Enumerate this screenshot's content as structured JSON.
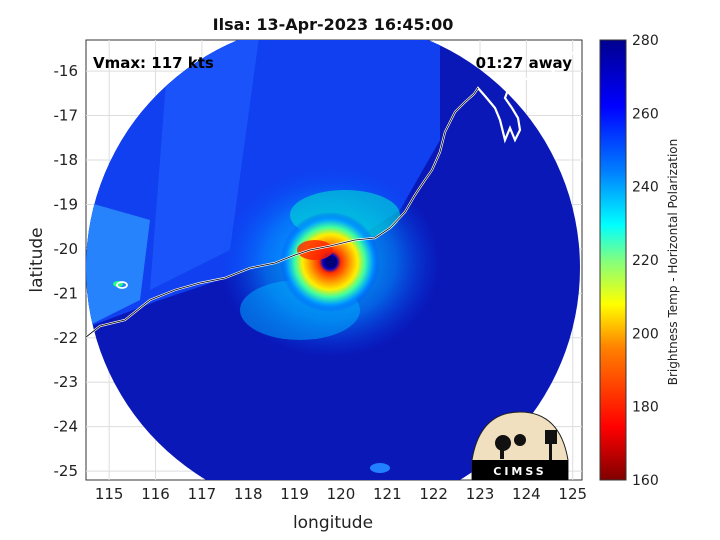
{
  "figure": {
    "title": "Ilsa: 13-Apr-2023 16:45:00",
    "vmax_label": "Vmax: 117 kts",
    "time_label": "01:27 away",
    "xlabel": "longitude",
    "ylabel": "latitude",
    "x_ticks": [
      "115",
      "116",
      "117",
      "118",
      "119",
      "120",
      "121",
      "122",
      "123",
      "124",
      "125"
    ],
    "y_ticks": [
      "-16",
      "-17",
      "-18",
      "-19",
      "-20",
      "-21",
      "-22",
      "-23",
      "-24",
      "-25"
    ],
    "x_range": [
      114.5,
      125.2
    ],
    "y_range": [
      -25.2,
      -15.3
    ]
  },
  "colorbar": {
    "label": "Brightness Temp - Horizontal Polarization",
    "ticks": [
      "280",
      "260",
      "240",
      "220",
      "200",
      "180",
      "160"
    ],
    "range": [
      160,
      280
    ],
    "colors": [
      "#7f0000",
      "#ff0000",
      "#ff8000",
      "#ffff00",
      "#80ff80",
      "#00ffff",
      "#0080ff",
      "#0000ff",
      "#00008f"
    ]
  },
  "storm": {
    "center_lon": 119.8,
    "center_lat": -20.3
  },
  "logo": {
    "text": "CIMSS"
  }
}
